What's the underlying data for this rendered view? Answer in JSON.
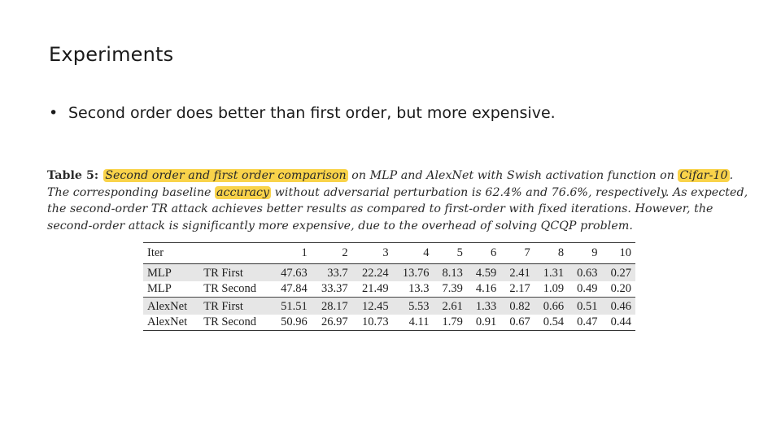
{
  "slide": {
    "title": "Experiments",
    "bullet_symbol": "•",
    "bullet_text": "Second order does better than first order, but more expensive."
  },
  "caption": {
    "label": "Table 5:",
    "hl1": "Second order and first order comparison",
    "t1": " on MLP and AlexNet with Swish activation function on ",
    "hl2": "Cifar-10",
    "t2": ".",
    "line2a": "The corresponding baseline ",
    "hl3": "accuracy",
    "line2b": " without adversarial perturbation is 62.4% and 76.6%, respectively.  As expected,",
    "line3": "the second-order TR attack achieves better results as compared to first-order with fixed iterations.  However, the",
    "line4": "second-order attack is significantly more expensive, due to the overhead of solving QCQP problem."
  },
  "table": {
    "header_label": "Iter",
    "columns": [
      "1",
      "2",
      "3",
      "4",
      "5",
      "6",
      "7",
      "8",
      "9",
      "10"
    ],
    "rows": [
      {
        "model": "MLP",
        "method": "TR First",
        "values": [
          "47.63",
          "33.7",
          "22.24",
          "13.76",
          "8.13",
          "4.59",
          "2.41",
          "1.31",
          "0.63",
          "0.27"
        ]
      },
      {
        "model": "MLP",
        "method": "TR Second",
        "values": [
          "47.84",
          "33.37",
          "21.49",
          "13.3",
          "7.39",
          "4.16",
          "2.17",
          "1.09",
          "0.49",
          "0.20"
        ]
      },
      {
        "model": "AlexNet",
        "method": "TR First",
        "values": [
          "51.51",
          "28.17",
          "12.45",
          "5.53",
          "2.61",
          "1.33",
          "0.82",
          "0.66",
          "0.51",
          "0.46"
        ]
      },
      {
        "model": "AlexNet",
        "method": "TR Second",
        "values": [
          "50.96",
          "26.97",
          "10.73",
          "4.11",
          "1.79",
          "0.91",
          "0.67",
          "0.54",
          "0.47",
          "0.44"
        ]
      }
    ]
  },
  "colors": {
    "highlight": "#f9d34a",
    "row_shade": "#e6e6e6"
  }
}
